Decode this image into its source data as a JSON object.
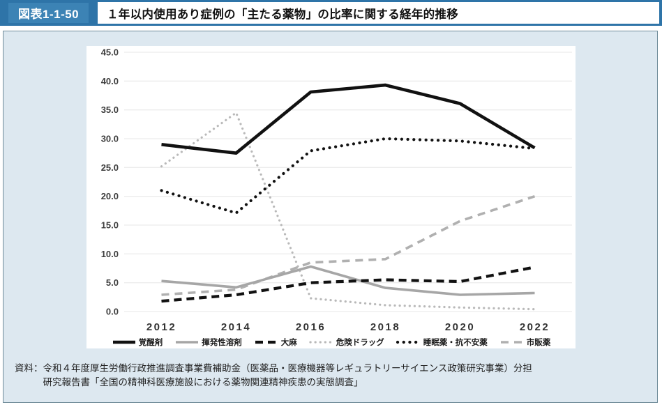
{
  "header": {
    "figure_label": "図表1-1-50",
    "title": "１年以内使用あり症例の「主たる薬物」の比率に関する経年的推移"
  },
  "source": {
    "prefix": "資料：",
    "line1": "令和４年度厚生労働行政推進調査事業費補助金（医薬品・医療機器等レギュラトリーサイエンス政策研究事業）分担",
    "line2": "研究報告書「全国の精神科医療施設における薬物関連精神疾患の実態調査」"
  },
  "colors": {
    "header_blue": "#2e74a8",
    "header_label_blue": "#3c83b5",
    "card_background": "#dde8f0",
    "card_border": "#6f8b99",
    "gridline": "#ececec",
    "black_series": "#111111",
    "gray_series": "#a6a6a6",
    "light_gray_series": "#b9b9b9"
  },
  "chart_data": {
    "type": "line",
    "categories": [
      "2012",
      "2014",
      "2016",
      "2018",
      "2020",
      "2022"
    ],
    "series": [
      {
        "name": "覚醒剤",
        "values": [
          29.0,
          27.5,
          38.1,
          39.3,
          36.1,
          28.4
        ],
        "style": {
          "color": "#111111",
          "width": 4.6,
          "dash": "",
          "cap": "butt"
        }
      },
      {
        "name": "揮発性溶剤",
        "values": [
          5.3,
          4.2,
          7.8,
          4.1,
          2.9,
          3.2
        ],
        "style": {
          "color": "#a6a6a6",
          "width": 3.6,
          "dash": "",
          "cap": "butt"
        }
      },
      {
        "name": "大麻",
        "values": [
          1.8,
          2.9,
          5.0,
          5.5,
          5.2,
          7.7
        ],
        "style": {
          "color": "#111111",
          "width": 4.2,
          "dash": "11 7",
          "cap": "butt"
        }
      },
      {
        "name": "危険ドラッグ",
        "values": [
          25.2,
          34.5,
          2.3,
          1.1,
          0.7,
          0.4
        ],
        "style": {
          "color": "#b9b9b9",
          "width": 3.2,
          "dash": "0.1 7",
          "cap": "round"
        }
      },
      {
        "name": "睡眠薬・抗不安薬",
        "values": [
          21.0,
          17.1,
          27.9,
          30.0,
          29.6,
          28.3
        ],
        "style": {
          "color": "#111111",
          "width": 4.2,
          "dash": "0.1 8.6",
          "cap": "round"
        }
      },
      {
        "name": "市販薬",
        "values": [
          2.9,
          3.8,
          8.5,
          9.1,
          15.7,
          20.0
        ],
        "style": {
          "color": "#b0b0b0",
          "width": 3.6,
          "dash": "11 8",
          "cap": "butt"
        }
      }
    ],
    "title": "",
    "xlabel": "",
    "ylabel": "",
    "ylim": [
      0,
      45
    ],
    "y_tick_step": 5,
    "y_tick_labels": [
      "0.0",
      "5.0",
      "10.0",
      "15.0",
      "20.0",
      "25.0",
      "30.0",
      "35.0",
      "40.0",
      "45.0"
    ],
    "grid": true,
    "legend_position": "bottom"
  }
}
